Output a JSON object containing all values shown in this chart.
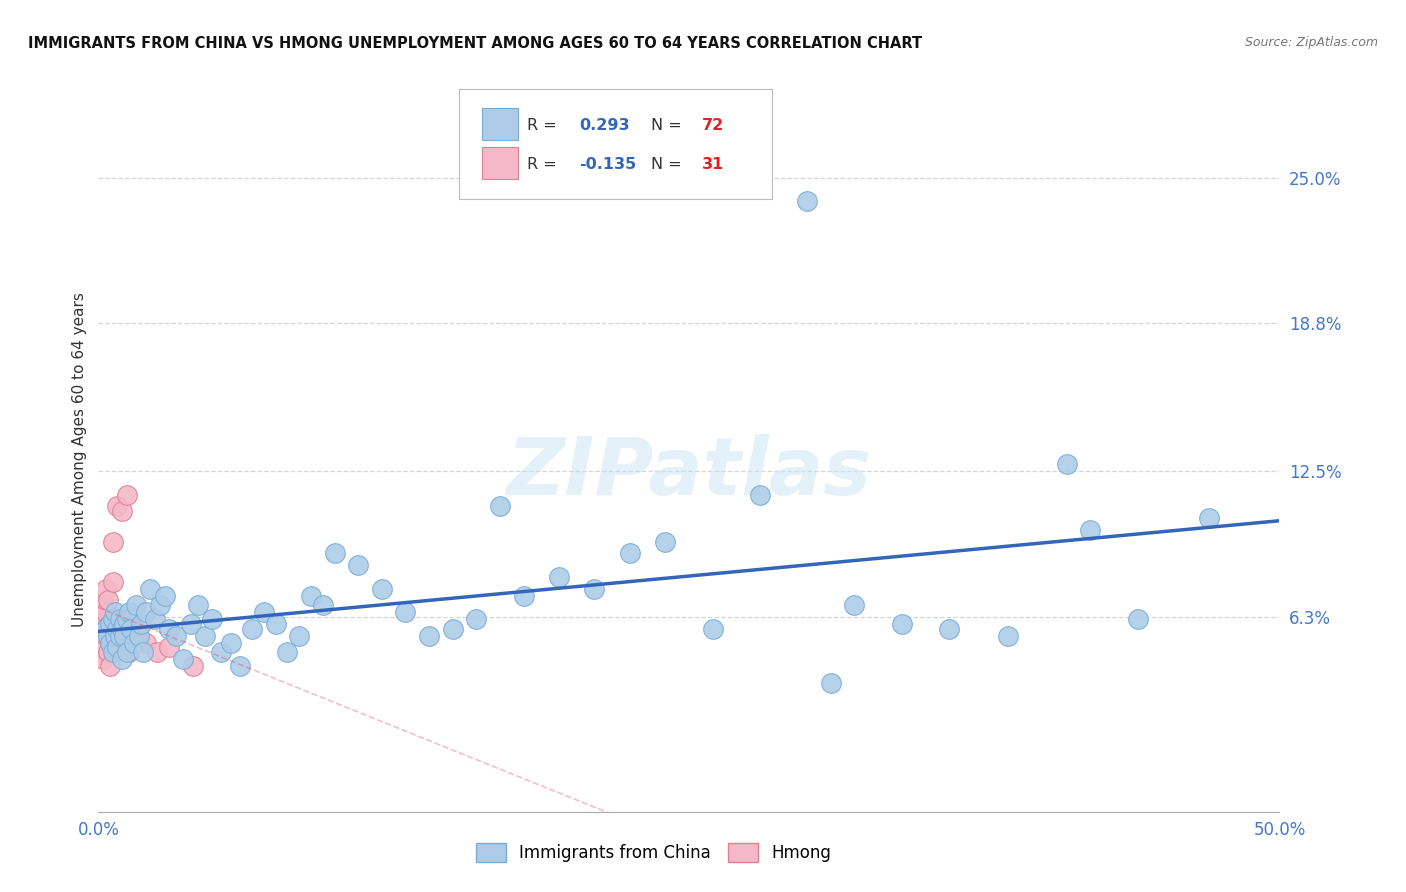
{
  "title": "IMMIGRANTS FROM CHINA VS HMONG UNEMPLOYMENT AMONG AGES 60 TO 64 YEARS CORRELATION CHART",
  "source": "Source: ZipAtlas.com",
  "ylabel": "Unemployment Among Ages 60 to 64 years",
  "xlim": [
    0.0,
    0.5
  ],
  "ylim": [
    -0.02,
    0.28
  ],
  "xticks": [
    0.0,
    0.1,
    0.2,
    0.3,
    0.4,
    0.5
  ],
  "xticklabels": [
    "0.0%",
    "",
    "",
    "",
    "",
    "50.0%"
  ],
  "ytick_positions": [
    0.063,
    0.125,
    0.188,
    0.25
  ],
  "ytick_labels": [
    "6.3%",
    "12.5%",
    "18.8%",
    "25.0%"
  ],
  "grid_color": "#cccccc",
  "background_color": "#ffffff",
  "watermark": "ZIPatlas",
  "china_color": "#aecce8",
  "china_edge_color": "#7aadd4",
  "hmong_color": "#f5b8c8",
  "hmong_edge_color": "#e08090",
  "china_R": 0.293,
  "china_N": 72,
  "hmong_R": -0.135,
  "hmong_N": 31,
  "china_line_color": "#3366bb",
  "hmong_line_color": "#dd4466",
  "legend_R_color": "#3366bb",
  "legend_N_color": "#dd2222",
  "china_x": [
    0.003,
    0.004,
    0.005,
    0.005,
    0.006,
    0.006,
    0.007,
    0.007,
    0.008,
    0.008,
    0.009,
    0.009,
    0.01,
    0.01,
    0.011,
    0.011,
    0.012,
    0.012,
    0.013,
    0.014,
    0.015,
    0.016,
    0.017,
    0.018,
    0.019,
    0.02,
    0.022,
    0.024,
    0.026,
    0.028,
    0.03,
    0.033,
    0.036,
    0.039,
    0.042,
    0.045,
    0.048,
    0.052,
    0.056,
    0.06,
    0.065,
    0.07,
    0.075,
    0.08,
    0.085,
    0.09,
    0.095,
    0.1,
    0.11,
    0.12,
    0.13,
    0.14,
    0.15,
    0.16,
    0.17,
    0.18,
    0.195,
    0.21,
    0.225,
    0.24,
    0.26,
    0.28,
    0.3,
    0.32,
    0.34,
    0.36,
    0.385,
    0.41,
    0.44,
    0.47,
    0.31,
    0.42
  ],
  "china_y": [
    0.058,
    0.055,
    0.06,
    0.052,
    0.062,
    0.048,
    0.065,
    0.055,
    0.058,
    0.05,
    0.062,
    0.055,
    0.058,
    0.045,
    0.06,
    0.055,
    0.062,
    0.048,
    0.065,
    0.058,
    0.052,
    0.068,
    0.055,
    0.06,
    0.048,
    0.065,
    0.075,
    0.062,
    0.068,
    0.072,
    0.058,
    0.055,
    0.045,
    0.06,
    0.068,
    0.055,
    0.062,
    0.048,
    0.052,
    0.042,
    0.058,
    0.065,
    0.06,
    0.048,
    0.055,
    0.072,
    0.068,
    0.09,
    0.085,
    0.075,
    0.065,
    0.055,
    0.058,
    0.062,
    0.11,
    0.072,
    0.08,
    0.075,
    0.09,
    0.095,
    0.058,
    0.115,
    0.24,
    0.068,
    0.06,
    0.058,
    0.055,
    0.128,
    0.062,
    0.105,
    0.035,
    0.1
  ],
  "hmong_x": [
    0.001,
    0.001,
    0.002,
    0.002,
    0.002,
    0.003,
    0.003,
    0.003,
    0.004,
    0.004,
    0.004,
    0.005,
    0.005,
    0.005,
    0.006,
    0.006,
    0.007,
    0.007,
    0.008,
    0.008,
    0.009,
    0.01,
    0.011,
    0.012,
    0.013,
    0.015,
    0.017,
    0.02,
    0.025,
    0.03,
    0.04
  ],
  "hmong_y": [
    0.06,
    0.05,
    0.058,
    0.068,
    0.045,
    0.055,
    0.065,
    0.075,
    0.048,
    0.058,
    0.07,
    0.052,
    0.06,
    0.042,
    0.095,
    0.078,
    0.06,
    0.055,
    0.11,
    0.058,
    0.062,
    0.108,
    0.058,
    0.115,
    0.048,
    0.058,
    0.055,
    0.052,
    0.048,
    0.05,
    0.042
  ]
}
